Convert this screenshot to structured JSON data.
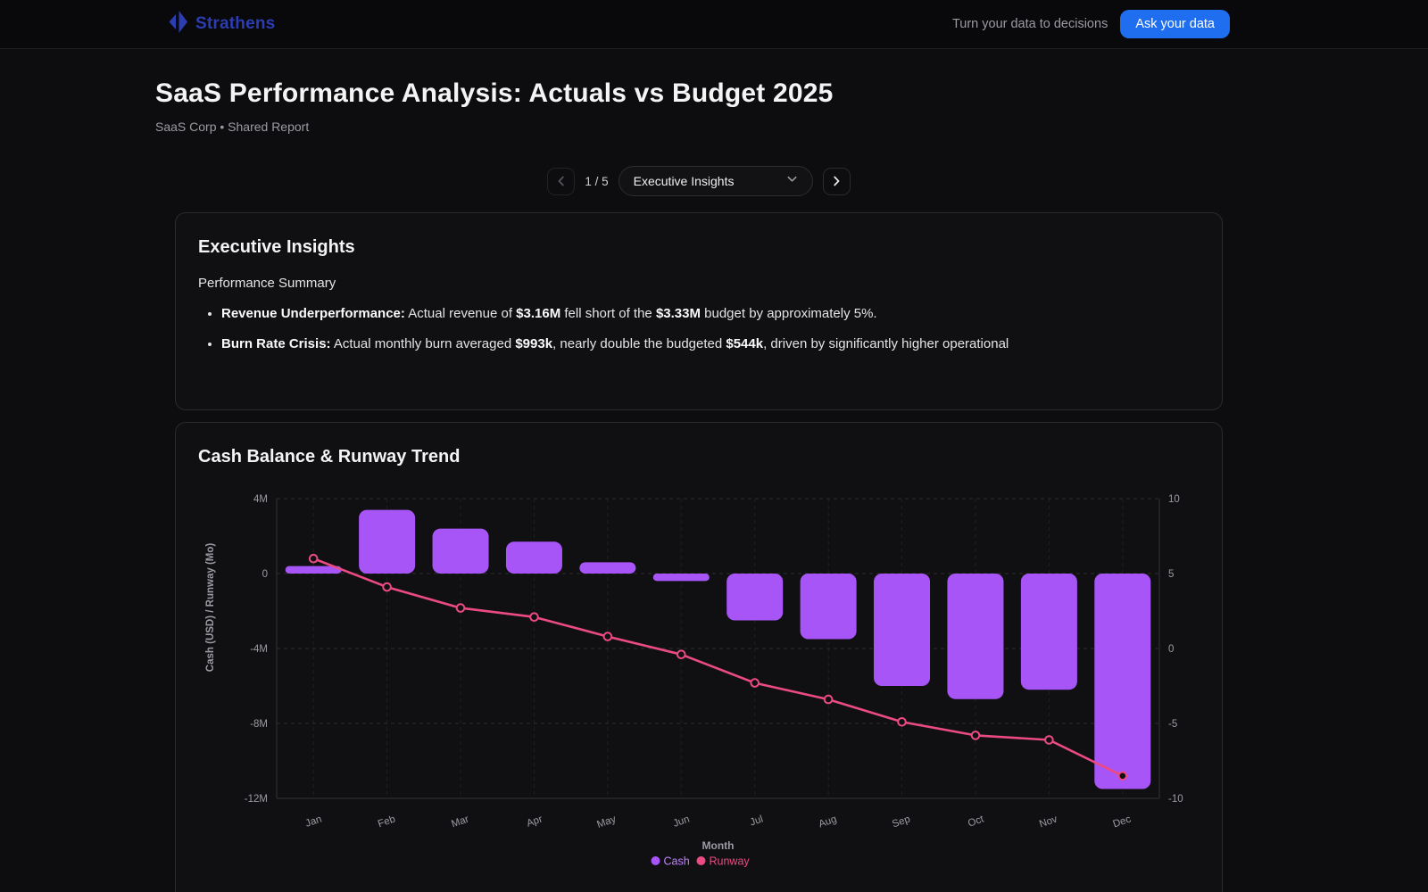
{
  "nav": {
    "brand": "Strathens",
    "tagline": "Turn your data to decisions",
    "cta": "Ask your data",
    "brand_color": "#2c3db1",
    "cta_color": "#1f6ef0"
  },
  "header": {
    "title": "SaaS Performance Analysis: Actuals vs Budget 2025",
    "subtitle": "SaaS Corp • Shared Report"
  },
  "pagination": {
    "page_indicator": "1 / 5",
    "selected_section": "Executive Insights"
  },
  "insights": {
    "heading": "Executive Insights",
    "subheading": "Performance Summary",
    "bullets": [
      [
        {
          "t": "Revenue Underperformance:",
          "b": true
        },
        {
          "t": " Actual revenue of ",
          "b": false
        },
        {
          "t": "$3.16M",
          "b": true
        },
        {
          "t": " fell short of the ",
          "b": false
        },
        {
          "t": "$3.33M",
          "b": true
        },
        {
          "t": " budget by approximately 5%.",
          "b": false
        }
      ],
      [
        {
          "t": "Burn Rate Crisis:",
          "b": true
        },
        {
          "t": " Actual monthly burn averaged ",
          "b": false
        },
        {
          "t": "$993k",
          "b": true
        },
        {
          "t": ", nearly double the budgeted ",
          "b": false
        },
        {
          "t": "$544k",
          "b": true
        },
        {
          "t": ", driven by significantly higher operational",
          "b": false
        }
      ]
    ]
  },
  "chart_card": {
    "heading": "Cash Balance & Runway Trend"
  },
  "chart_data": {
    "type": "bar",
    "subtype": "bar+line combo, dual axis",
    "title": "Cash Balance & Runway Trend",
    "categories": [
      "Jan",
      "Feb",
      "Mar",
      "Apr",
      "May",
      "Jun",
      "Jul",
      "Aug",
      "Sep",
      "Oct",
      "Nov",
      "Dec"
    ],
    "series": [
      {
        "name": "Cash",
        "type": "bar",
        "axis": "left",
        "unit": "M USD",
        "color": "#a855f7",
        "values": [
          0.4,
          3.4,
          2.4,
          1.7,
          0.6,
          -0.4,
          -2.5,
          -3.5,
          -6.0,
          -6.7,
          -6.2,
          -11.5
        ]
      },
      {
        "name": "Runway",
        "type": "line",
        "axis": "right",
        "unit": "months",
        "color": "#ec4b82",
        "values": [
          6.0,
          4.1,
          2.7,
          2.1,
          0.8,
          -0.4,
          -2.3,
          -3.4,
          -4.9,
          -5.8,
          -6.1,
          -8.5
        ]
      }
    ],
    "xlabel": "Month",
    "ylabel_left": "Cash (USD) / Runway (Mo)",
    "left_ticks": [
      {
        "label": "4M",
        "value": 4
      },
      {
        "label": "0",
        "value": 0
      },
      {
        "label": "-4M",
        "value": -4
      },
      {
        "label": "-8M",
        "value": -8
      },
      {
        "label": "-12M",
        "value": -12
      }
    ],
    "left_range": [
      -12,
      4
    ],
    "right_ticks": [
      {
        "label": "10",
        "value": 10
      },
      {
        "label": "5",
        "value": 5
      },
      {
        "label": "0",
        "value": 0
      },
      {
        "label": "-5",
        "value": -5
      },
      {
        "label": "-10",
        "value": -10
      }
    ],
    "right_range": [
      -10,
      10
    ],
    "grid": true,
    "grid_style": "dashed",
    "legend_position": "bottom",
    "tick_color": "#9b9ba3"
  }
}
